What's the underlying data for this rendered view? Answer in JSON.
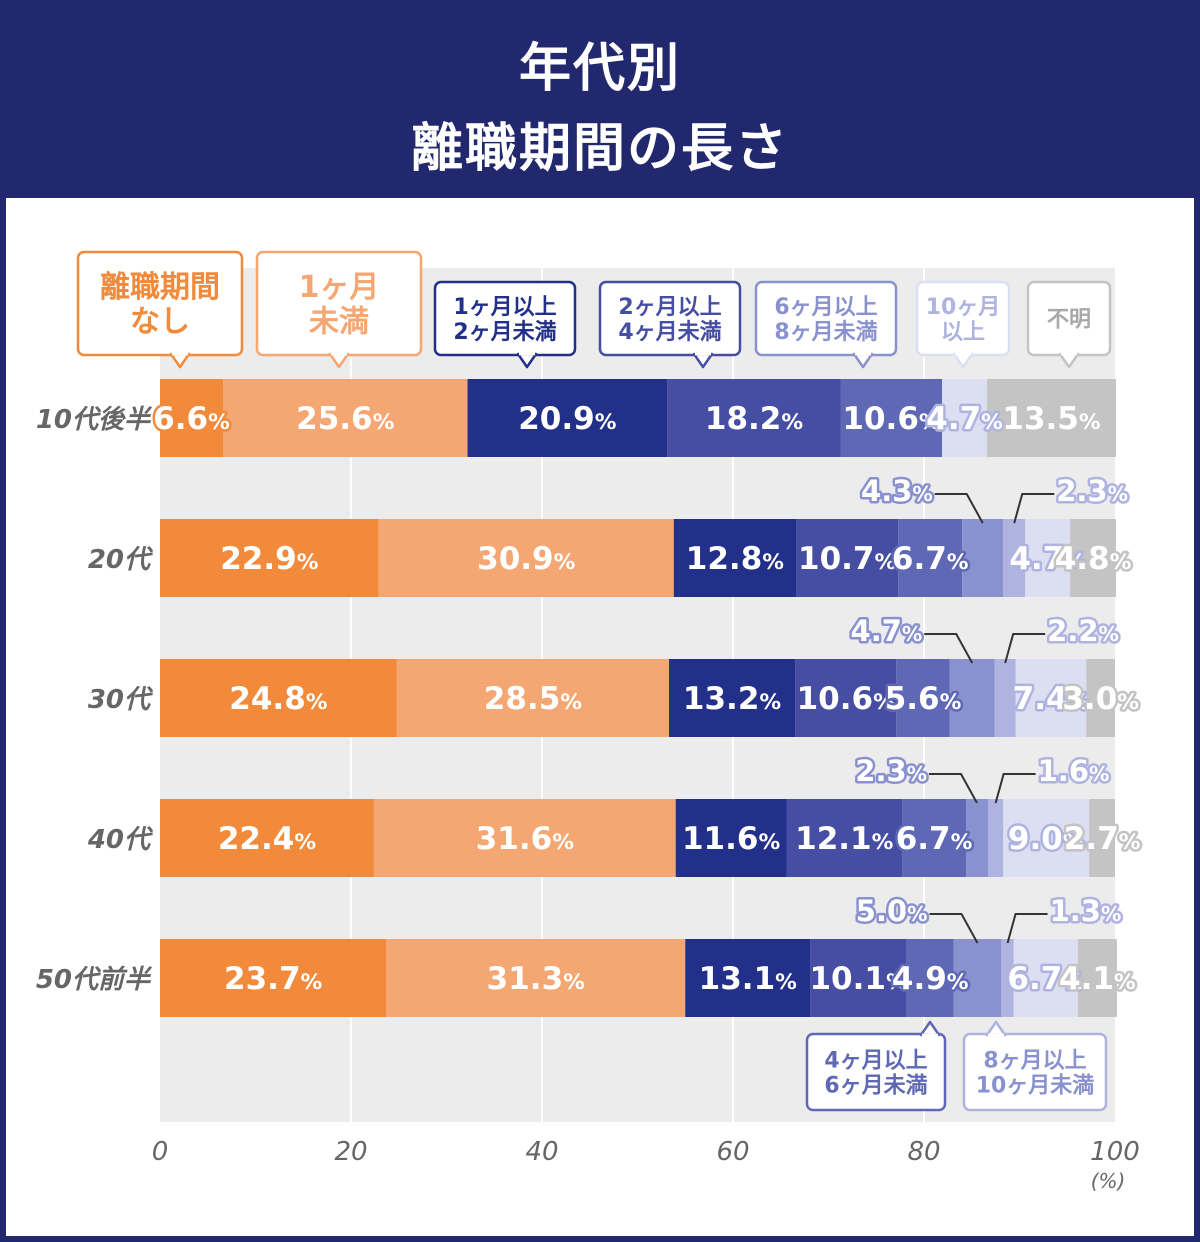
{
  "title": {
    "line1": "年代別",
    "line2": "離職期間の長さ"
  },
  "chart_data": {
    "type": "bar",
    "orientation": "horizontal",
    "stacked": true,
    "categories": [
      "10代後半",
      "20代",
      "30代",
      "40代",
      "50代前半"
    ],
    "series": [
      {
        "name": "離職期間なし",
        "values": [
          6.6,
          22.9,
          24.8,
          22.4,
          23.7
        ],
        "color": "#f28a3c",
        "label_color": "#ffffff",
        "outline": "#f28a3c"
      },
      {
        "name": "1ヶ月未満",
        "values": [
          25.6,
          30.9,
          28.5,
          31.6,
          31.3
        ],
        "color": "#f5a773",
        "label_color": "#ffffff",
        "outline": "#f5a773"
      },
      {
        "name": "1ヶ月以上2ヶ月未満",
        "values": [
          20.9,
          12.8,
          13.2,
          11.6,
          13.1
        ],
        "color": "#22308a",
        "label_color": "#ffffff",
        "outline": "#22308a"
      },
      {
        "name": "2ヶ月以上4ヶ月未満",
        "values": [
          18.2,
          10.7,
          10.6,
          12.1,
          10.1
        ],
        "color": "#464ea3",
        "label_color": "#ffffff",
        "outline": "#464ea3"
      },
      {
        "name": "4ヶ月以上6ヶ月未満",
        "values": [
          10.6,
          6.7,
          5.6,
          6.7,
          4.9
        ],
        "color": "#5f68b4",
        "label_color": "#ffffff",
        "outline": "#5f68b4"
      },
      {
        "name": "6ヶ月以上8ヶ月未満",
        "values": [
          0,
          4.3,
          4.7,
          2.3,
          5.0
        ],
        "color": "#8a91cf",
        "label_color": "#ffffff",
        "outline": "#8a91cf"
      },
      {
        "name": "8ヶ月以上10ヶ月未満",
        "values": [
          0,
          2.3,
          2.2,
          1.6,
          1.3
        ],
        "color": "#aeb3e0",
        "label_color": "#ffffff",
        "outline": "#aeb3e0"
      },
      {
        "name": "10ヶ月以上",
        "values": [
          4.7,
          4.7,
          7.4,
          9.0,
          6.7
        ],
        "color": "#dcdff2",
        "label_color": "#ffffff",
        "outline": "#aeb3e0"
      },
      {
        "name": "不明",
        "values": [
          13.5,
          4.8,
          3.0,
          2.7,
          4.1
        ],
        "color": "#c4c4c4",
        "label_color": "#ffffff",
        "outline": "#c4c4c4"
      }
    ],
    "labels": [
      [
        "6.6",
        "25.6",
        "20.9",
        "18.2",
        "10.6",
        "",
        "",
        "4.7",
        "13.5"
      ],
      [
        "22.9",
        "30.9",
        "12.8",
        "10.7",
        "6.7",
        "4.3",
        "2.3",
        "4.7",
        "4.8"
      ],
      [
        "24.8",
        "28.5",
        "13.2",
        "10.6",
        "5.6",
        "4.7",
        "2.2",
        "7.4",
        "3.0"
      ],
      [
        "22.4",
        "31.6",
        "11.6",
        "12.1",
        "6.7",
        "2.3",
        "1.6",
        "9.0",
        "2.7"
      ],
      [
        "23.7",
        "31.3",
        "13.1",
        "10.1",
        "4.9",
        "5.0",
        "1.3",
        "6.7",
        "4.1"
      ]
    ],
    "label_unit": "%",
    "xlim": [
      0,
      100
    ],
    "xticks": [
      "0",
      "20",
      "40",
      "60",
      "80",
      "100"
    ],
    "x_unit": "(%)",
    "legend": [
      {
        "lines": [
          "離職期間",
          "なし"
        ],
        "border": "#f28a3c",
        "text": "#f28a3c"
      },
      {
        "lines": [
          "1ヶ月",
          "未満"
        ],
        "border": "#f5a773",
        "text": "#f5a773"
      },
      {
        "lines": [
          "1ヶ月以上",
          "2ヶ月未満"
        ],
        "border": "#22308a",
        "text": "#22308a"
      },
      {
        "lines": [
          "2ヶ月以上",
          "4ヶ月未満"
        ],
        "border": "#464ea3",
        "text": "#464ea3"
      },
      {
        "lines": [
          "6ヶ月以上",
          "8ヶ月未満"
        ],
        "border": "#8a91cf",
        "text": "#8a91cf"
      },
      {
        "lines": [
          "10ヶ月",
          "以上"
        ],
        "border": "#dcdff2",
        "text": "#aeb3e0"
      },
      {
        "lines": [
          "不明"
        ],
        "border": "#c4c4c4",
        "text": "#a8a8a8"
      },
      {
        "lines": [
          "4ヶ月以上",
          "6ヶ月未満"
        ],
        "border": "#5f68b4",
        "text": "#5f68b4"
      },
      {
        "lines": [
          "8ヶ月以上",
          "10ヶ月未満"
        ],
        "border": "#aeb3e0",
        "text": "#8a91cf"
      }
    ],
    "grid": true
  }
}
